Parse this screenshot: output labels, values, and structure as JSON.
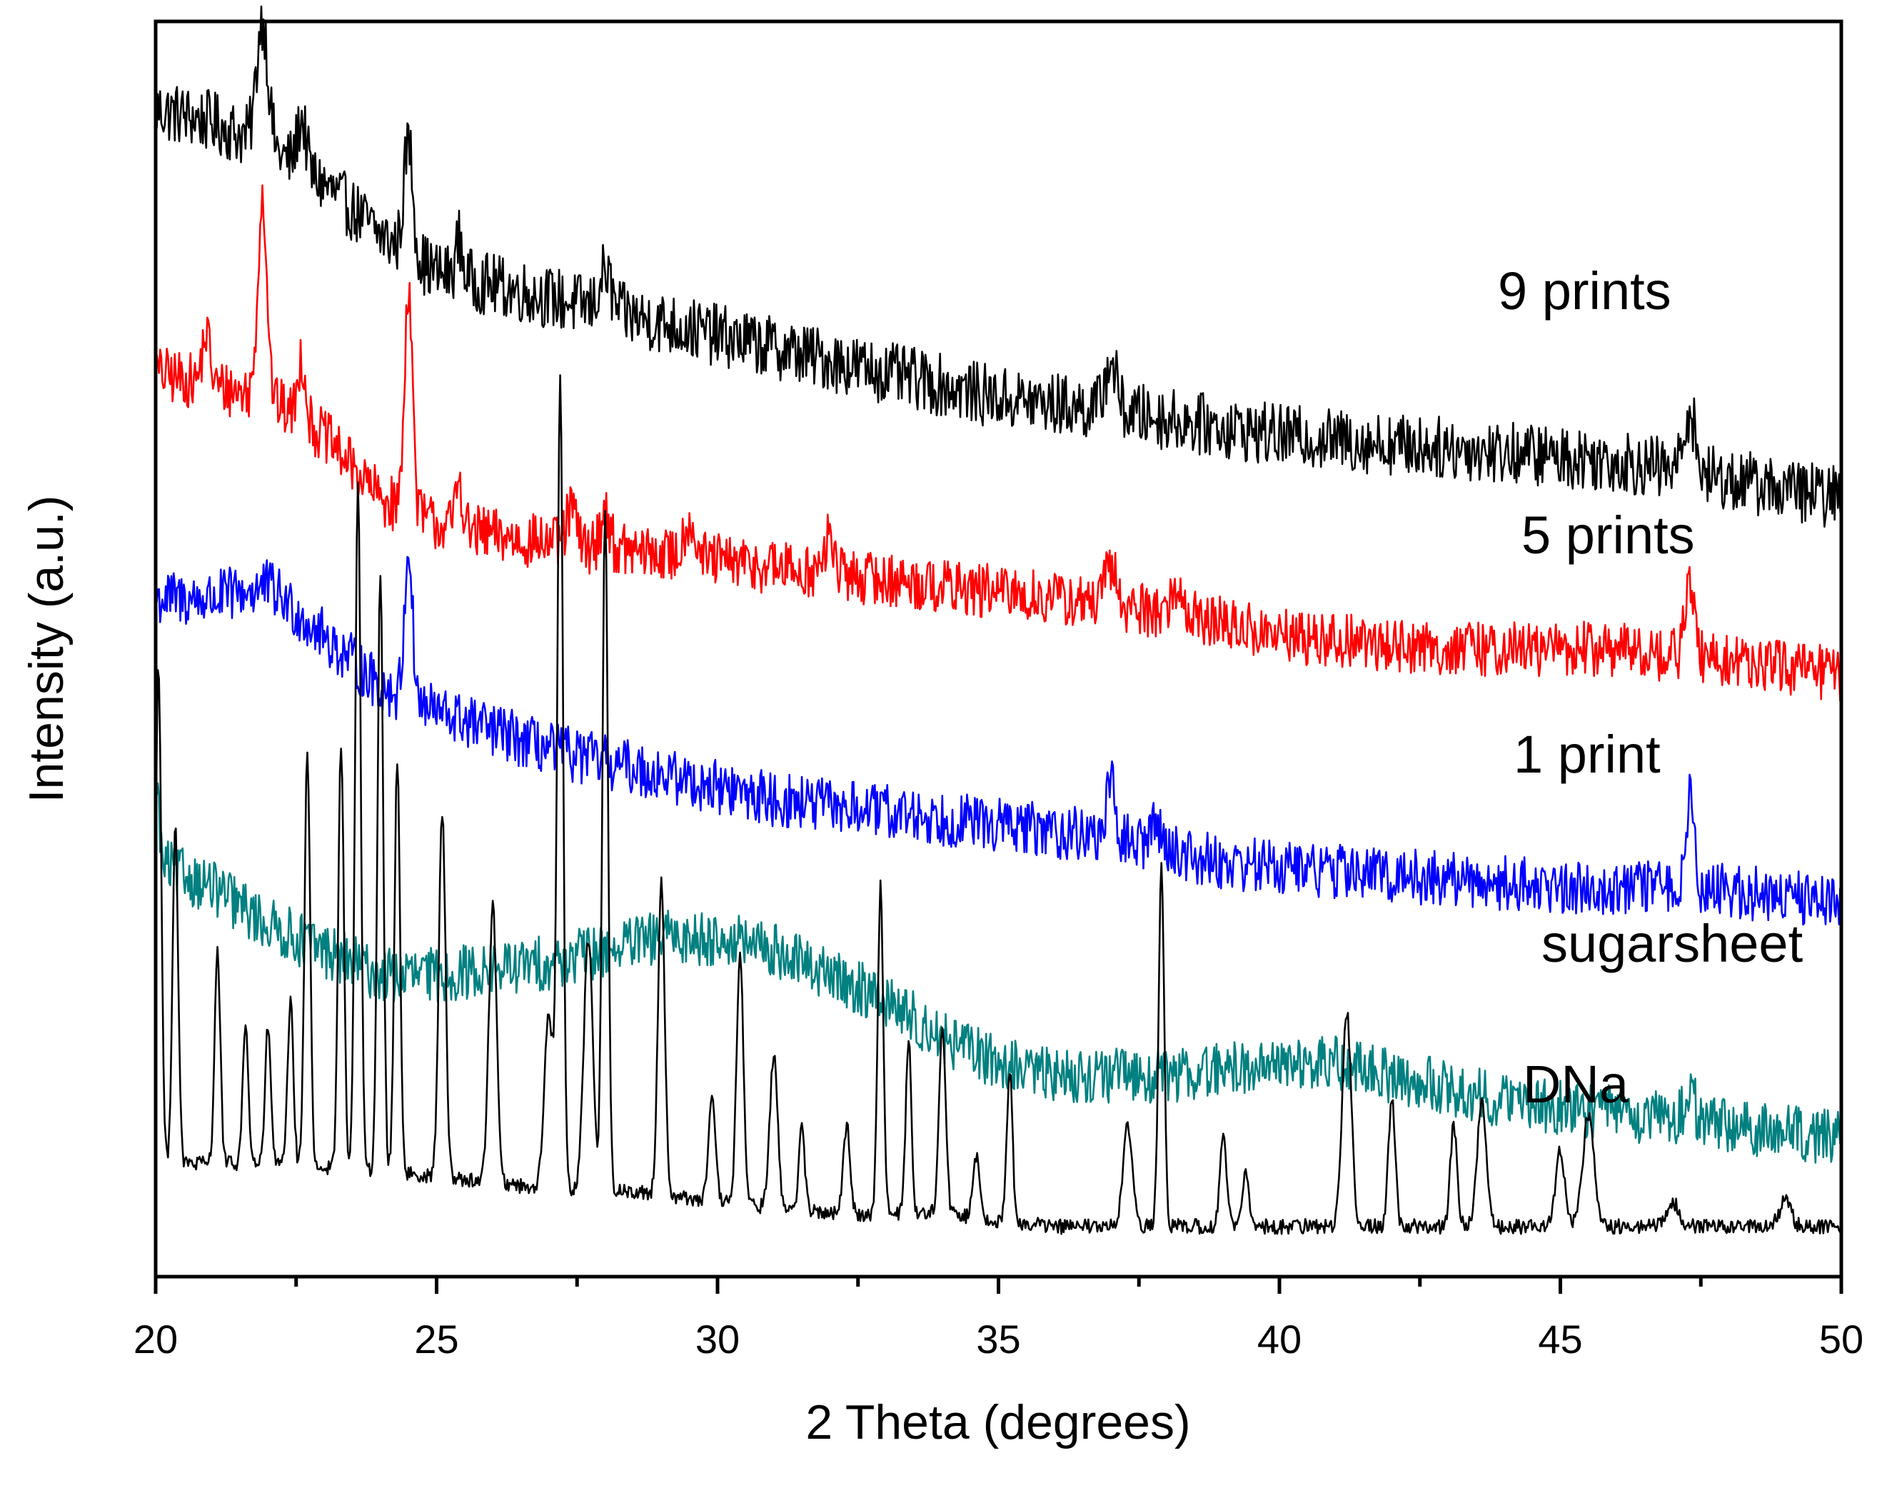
{
  "chart_data": {
    "type": "line",
    "title": "",
    "xlabel": "2 Theta (degrees)",
    "ylabel": "Intensity (a.u.)",
    "xlim": [
      20,
      50
    ],
    "x_ticks": [
      "20",
      "25",
      "30",
      "35",
      "40",
      "45",
      "50"
    ],
    "y_ticks": [],
    "grid": false,
    "legend": "inline labels to the right of each trace",
    "series": [
      {
        "name": "9 prints",
        "color": "#000000",
        "noise": 0.025,
        "baseline": [
          [
            20,
            0.93
          ],
          [
            21,
            0.92
          ],
          [
            22,
            0.9
          ],
          [
            23,
            0.87
          ],
          [
            24,
            0.83
          ],
          [
            25,
            0.8
          ],
          [
            27,
            0.78
          ],
          [
            29,
            0.76
          ],
          [
            31,
            0.74
          ],
          [
            33,
            0.72
          ],
          [
            35,
            0.7
          ],
          [
            37,
            0.69
          ],
          [
            40,
            0.67
          ],
          [
            43,
            0.66
          ],
          [
            46,
            0.65
          ],
          [
            50,
            0.62
          ]
        ],
        "peaks": [
          [
            21.9,
            0.1,
            0.1
          ],
          [
            22.6,
            0.04,
            0.08
          ],
          [
            24.5,
            0.09,
            0.08
          ],
          [
            25.4,
            0.03,
            0.06
          ],
          [
            28.0,
            0.03,
            0.1
          ],
          [
            37.0,
            0.04,
            0.1
          ],
          [
            47.3,
            0.05,
            0.1
          ]
        ]
      },
      {
        "name": "5 prints",
        "color": "#ff0000",
        "noise": 0.022,
        "baseline": [
          [
            20,
            0.72
          ],
          [
            21,
            0.71
          ],
          [
            22,
            0.7
          ],
          [
            23,
            0.67
          ],
          [
            24,
            0.62
          ],
          [
            25,
            0.6
          ],
          [
            26,
            0.59
          ],
          [
            28,
            0.58
          ],
          [
            30,
            0.57
          ],
          [
            32,
            0.56
          ],
          [
            34,
            0.55
          ],
          [
            36,
            0.54
          ],
          [
            38,
            0.53
          ],
          [
            40,
            0.51
          ],
          [
            43,
            0.5
          ],
          [
            46,
            0.5
          ],
          [
            50,
            0.48
          ]
        ],
        "peaks": [
          [
            20.9,
            0.04,
            0.07
          ],
          [
            21.9,
            0.16,
            0.08
          ],
          [
            22.6,
            0.05,
            0.07
          ],
          [
            24.5,
            0.18,
            0.07
          ],
          [
            25.4,
            0.04,
            0.06
          ],
          [
            27.4,
            0.03,
            0.08
          ],
          [
            28.0,
            0.03,
            0.08
          ],
          [
            29.5,
            0.03,
            0.1
          ],
          [
            32.0,
            0.03,
            0.08
          ],
          [
            37.0,
            0.03,
            0.1
          ],
          [
            38.2,
            0.02,
            0.1
          ],
          [
            47.3,
            0.06,
            0.08
          ]
        ]
      },
      {
        "name": "1 print",
        "color": "#0000ff",
        "noise": 0.022,
        "baseline": [
          [
            20,
            0.54
          ],
          [
            21,
            0.54
          ],
          [
            22,
            0.55
          ],
          [
            23,
            0.51
          ],
          [
            24,
            0.47
          ],
          [
            25,
            0.45
          ],
          [
            27,
            0.42
          ],
          [
            29,
            0.4
          ],
          [
            31,
            0.38
          ],
          [
            33,
            0.37
          ],
          [
            35,
            0.36
          ],
          [
            37,
            0.35
          ],
          [
            39,
            0.33
          ],
          [
            42,
            0.32
          ],
          [
            45,
            0.31
          ],
          [
            47,
            0.31
          ],
          [
            50,
            0.3
          ]
        ],
        "peaks": [
          [
            24.5,
            0.12,
            0.07
          ],
          [
            37.0,
            0.04,
            0.08
          ],
          [
            37.8,
            0.02,
            0.1
          ],
          [
            47.3,
            0.07,
            0.08
          ]
        ]
      },
      {
        "name": "sugarsheet",
        "color": "#008080",
        "noise": 0.022,
        "baseline": [
          [
            20,
            0.33
          ],
          [
            21,
            0.31
          ],
          [
            22,
            0.28
          ],
          [
            23,
            0.26
          ],
          [
            24,
            0.24
          ],
          [
            25,
            0.24
          ],
          [
            27,
            0.25
          ],
          [
            28,
            0.26
          ],
          [
            29,
            0.27
          ],
          [
            30,
            0.27
          ],
          [
            31,
            0.26
          ],
          [
            32,
            0.24
          ],
          [
            33,
            0.22
          ],
          [
            34,
            0.19
          ],
          [
            35,
            0.17
          ],
          [
            36,
            0.16
          ],
          [
            38,
            0.16
          ],
          [
            40,
            0.17
          ],
          [
            41,
            0.17
          ],
          [
            42,
            0.16
          ],
          [
            44,
            0.14
          ],
          [
            46,
            0.13
          ],
          [
            48,
            0.12
          ],
          [
            50,
            0.11
          ]
        ],
        "peaks": [
          [
            20.0,
            0.08,
            0.05
          ],
          [
            47.3,
            0.03,
            0.08
          ]
        ]
      },
      {
        "name": "DNa",
        "color": "#000000",
        "noise": 0.006,
        "baseline": [
          [
            20,
            0.09
          ],
          [
            22,
            0.09
          ],
          [
            25,
            0.08
          ],
          [
            27,
            0.07
          ],
          [
            28,
            0.07
          ],
          [
            30,
            0.06
          ],
          [
            32,
            0.05
          ],
          [
            34,
            0.05
          ],
          [
            36,
            0.04
          ],
          [
            38,
            0.04
          ],
          [
            40,
            0.04
          ],
          [
            42,
            0.04
          ],
          [
            44,
            0.04
          ],
          [
            46,
            0.04
          ],
          [
            48,
            0.04
          ],
          [
            50,
            0.04
          ]
        ],
        "peaks": [
          [
            20.05,
            0.4,
            0.05
          ],
          [
            20.35,
            0.27,
            0.05
          ],
          [
            21.1,
            0.17,
            0.05
          ],
          [
            21.6,
            0.11,
            0.05
          ],
          [
            22.0,
            0.11,
            0.05
          ],
          [
            22.4,
            0.13,
            0.05
          ],
          [
            22.7,
            0.33,
            0.05
          ],
          [
            23.3,
            0.34,
            0.05
          ],
          [
            23.6,
            0.55,
            0.05
          ],
          [
            24.0,
            0.48,
            0.05
          ],
          [
            24.3,
            0.33,
            0.05
          ],
          [
            25.1,
            0.29,
            0.06
          ],
          [
            26.0,
            0.22,
            0.07
          ],
          [
            27.0,
            0.14,
            0.08
          ],
          [
            27.2,
            0.64,
            0.05
          ],
          [
            27.7,
            0.2,
            0.08
          ],
          [
            28.0,
            0.54,
            0.05
          ],
          [
            29.0,
            0.25,
            0.06
          ],
          [
            29.9,
            0.08,
            0.06
          ],
          [
            30.4,
            0.2,
            0.06
          ],
          [
            31.0,
            0.12,
            0.07
          ],
          [
            31.5,
            0.07,
            0.05
          ],
          [
            32.3,
            0.07,
            0.06
          ],
          [
            32.9,
            0.26,
            0.05
          ],
          [
            33.4,
            0.14,
            0.05
          ],
          [
            34.0,
            0.15,
            0.06
          ],
          [
            34.6,
            0.05,
            0.06
          ],
          [
            35.2,
            0.12,
            0.05
          ],
          [
            37.3,
            0.08,
            0.08
          ],
          [
            37.9,
            0.29,
            0.05
          ],
          [
            39.0,
            0.07,
            0.06
          ],
          [
            39.4,
            0.04,
            0.06
          ],
          [
            41.2,
            0.17,
            0.08
          ],
          [
            42.0,
            0.1,
            0.06
          ],
          [
            43.1,
            0.08,
            0.06
          ],
          [
            43.6,
            0.1,
            0.08
          ],
          [
            45.0,
            0.06,
            0.08
          ],
          [
            45.5,
            0.09,
            0.1
          ],
          [
            47.0,
            0.02,
            0.1
          ],
          [
            49.0,
            0.02,
            0.1
          ]
        ]
      }
    ]
  }
}
